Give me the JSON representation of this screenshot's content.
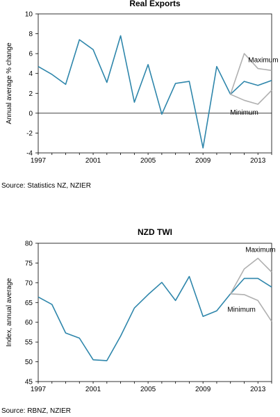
{
  "chart_data": [
    {
      "type": "line",
      "title": "Real Exports",
      "ylabel": "Annual average % change",
      "xlabel": "",
      "xlim": [
        1997,
        2014
      ],
      "ylim": [
        -4,
        10
      ],
      "yticks": [
        -4,
        -2,
        0,
        2,
        4,
        6,
        8,
        10
      ],
      "xticks": [
        1997,
        2001,
        2005,
        2009,
        2013
      ],
      "grid": false,
      "zero_line": true,
      "source": "Source: Statistics NZ, NZIER",
      "colors": {
        "main": "#2e86ab",
        "range": "#b0b0b0"
      },
      "series": [
        {
          "x": [
            1997,
            1998,
            1999,
            2000,
            2001,
            2002,
            2003,
            2004,
            2005,
            2006,
            2007,
            2008,
            2009,
            2010,
            2011,
            2012,
            2013,
            2014
          ],
          "values": [
            4.7,
            3.9,
            2.9,
            7.4,
            6.4,
            3.1,
            7.8,
            1.1,
            4.9,
            -0.1,
            3.0,
            3.2,
            -3.5,
            4.7,
            1.9,
            3.2,
            2.8,
            3.3
          ]
        },
        {
          "name": "Maximum",
          "x": [
            2011,
            2012,
            2013,
            2014
          ],
          "values": [
            1.9,
            6.0,
            4.5,
            4.3
          ]
        },
        {
          "name": "Minimum",
          "x": [
            2011,
            2012,
            2013,
            2014
          ],
          "values": [
            1.9,
            1.3,
            0.9,
            2.3
          ]
        }
      ]
    },
    {
      "type": "line",
      "title": "NZD TWI",
      "ylabel": "Index, annual average",
      "xlabel": "",
      "xlim": [
        1997,
        2014
      ],
      "ylim": [
        45,
        80
      ],
      "yticks": [
        45,
        50,
        55,
        60,
        65,
        70,
        75,
        80
      ],
      "xticks": [
        1997,
        2001,
        2005,
        2009,
        2013
      ],
      "grid": false,
      "zero_line": false,
      "source": "Source: RBNZ, NZIER",
      "colors": {
        "main": "#2e86ab",
        "range": "#b0b0b0"
      },
      "series": [
        {
          "x": [
            1997,
            1998,
            1999,
            2000,
            2001,
            2002,
            2003,
            2004,
            2005,
            2006,
            2007,
            2008,
            2009,
            2010,
            2011,
            2012,
            2013,
            2014
          ],
          "values": [
            66.4,
            64.5,
            57.3,
            56.0,
            50.5,
            50.3,
            56.5,
            63.6,
            67.0,
            70.1,
            65.5,
            71.6,
            61.5,
            62.9,
            67.2,
            71.1,
            71.1,
            68.9
          ]
        },
        {
          "name": "Maximum",
          "x": [
            2011,
            2012,
            2013,
            2014
          ],
          "values": [
            67.2,
            73.5,
            76.2,
            72.7
          ]
        },
        {
          "name": "Minimum",
          "x": [
            2011,
            2012,
            2013,
            2014
          ],
          "values": [
            67.2,
            67.0,
            65.5,
            60.2
          ]
        }
      ]
    }
  ]
}
